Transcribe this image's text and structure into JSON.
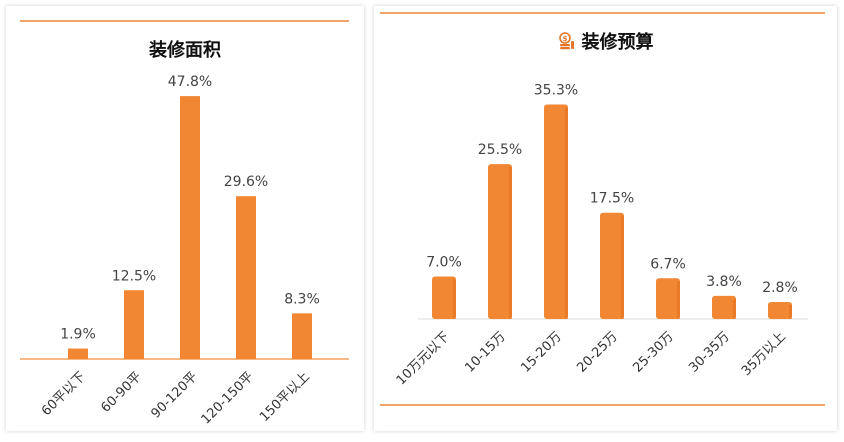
{
  "charts": {
    "area": {
      "title": "装修面积"
    },
    "budget": {
      "title": "装修预算",
      "icon": "coin-stack-icon"
    }
  },
  "colors": {
    "bar": "#f28733",
    "bar_dark": "#e0701c",
    "accent_rule": "#f0a46a",
    "baseline_area": "#f5a25f",
    "baseline_budget": "#dddddd"
  },
  "chart_data": [
    {
      "type": "bar",
      "title": "装修面积",
      "categories": [
        "60平以下",
        "60-90平",
        "90-120平",
        "120-150平",
        "150平以上"
      ],
      "values": [
        1.9,
        12.5,
        47.8,
        29.6,
        8.3
      ],
      "value_labels": [
        "1.9%",
        "12.5%",
        "47.8%",
        "29.6%",
        "8.3%"
      ],
      "unit": "%",
      "ylim": [
        0,
        50
      ],
      "grid": false,
      "legend": "none"
    },
    {
      "type": "bar",
      "title": "装修预算",
      "categories": [
        "10万元以下",
        "10-15万",
        "15-20万",
        "20-25万",
        "25-30万",
        "30-35万",
        "35万以上"
      ],
      "values": [
        7.0,
        25.5,
        35.3,
        17.5,
        6.7,
        3.8,
        2.8
      ],
      "value_labels": [
        "7.0%",
        "25.5%",
        "35.3%",
        "17.5%",
        "6.7%",
        "3.8%",
        "2.8%"
      ],
      "unit": "%",
      "ylim": [
        0,
        40
      ],
      "grid": false,
      "legend": "none"
    }
  ]
}
